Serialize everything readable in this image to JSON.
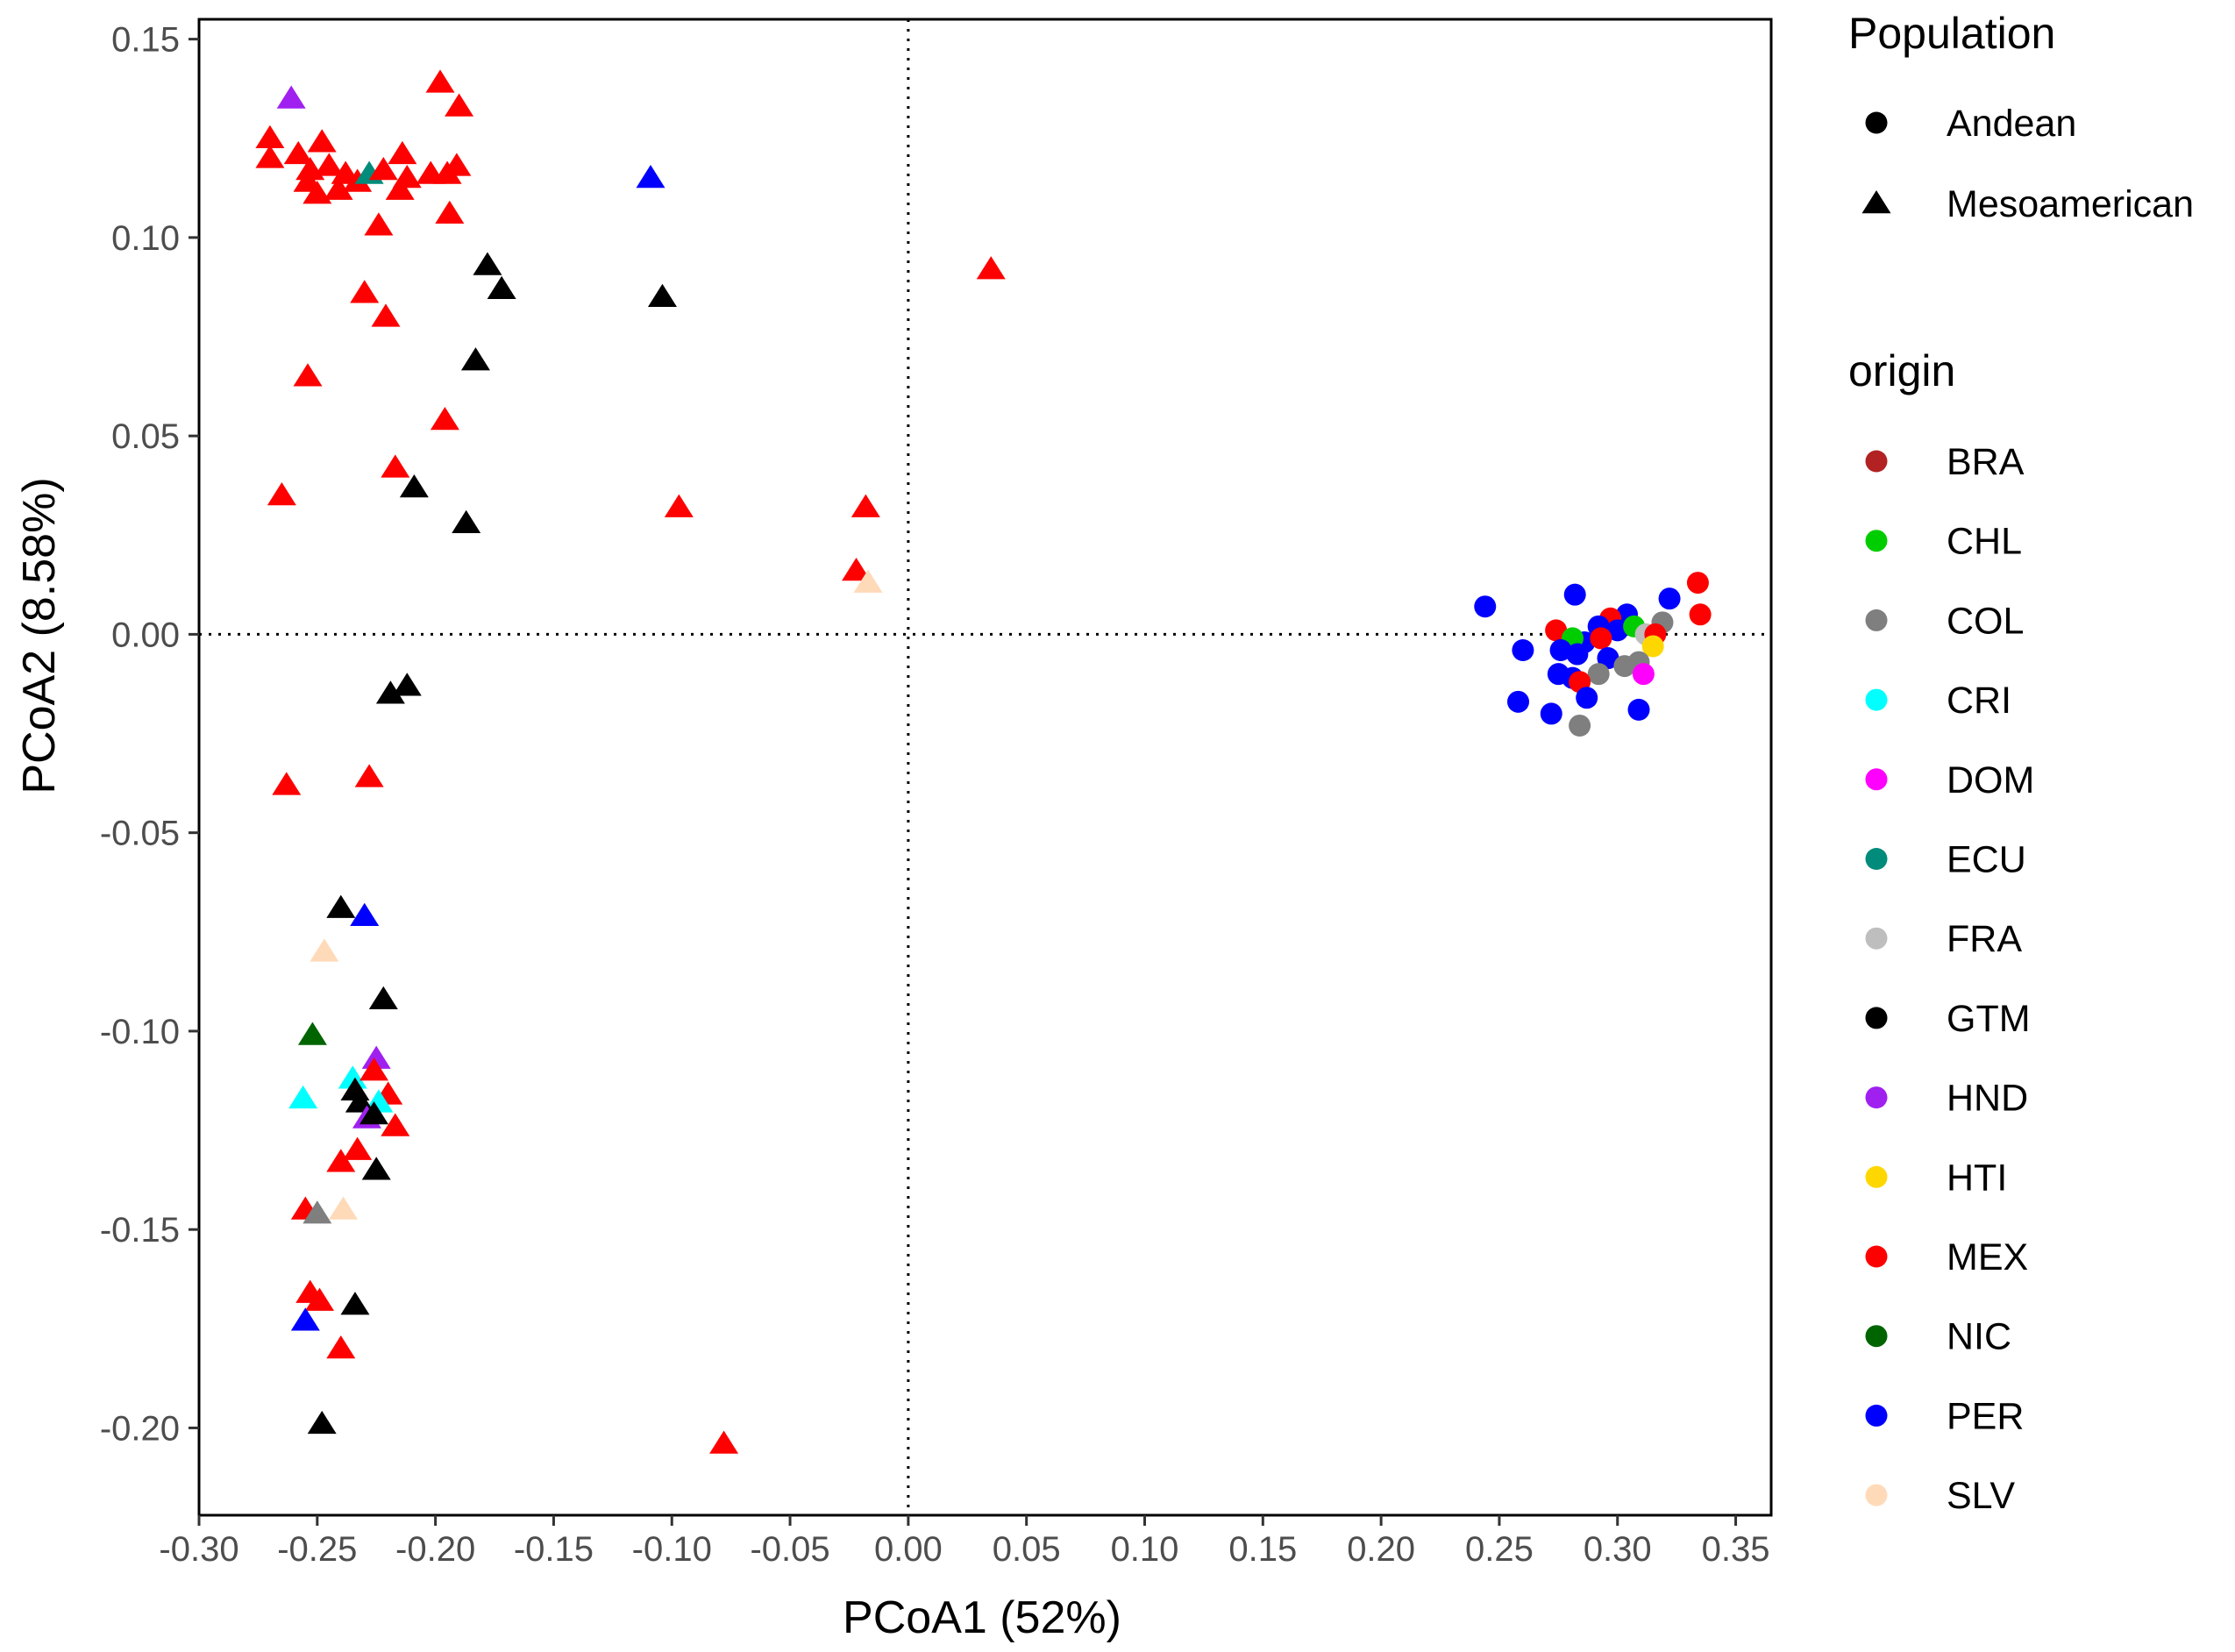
{
  "chart_data": {
    "type": "scatter",
    "xlabel": "PCoA1 (52%)",
    "ylabel": "PCoA2 (8.58%)",
    "xlim": [
      -0.3,
      0.365
    ],
    "ylim": [
      -0.222,
      0.155
    ],
    "x_ticks": [
      "-0.30",
      "-0.25",
      "-0.20",
      "-0.15",
      "-0.10",
      "-0.05",
      "0.00",
      "0.05",
      "0.10",
      "0.15",
      "0.20",
      "0.25",
      "0.30",
      "0.35"
    ],
    "y_ticks": [
      "0.15",
      "0.10",
      "0.05",
      "0.00",
      "-0.05",
      "-0.10",
      "-0.15",
      "-0.20"
    ],
    "reference_lines": {
      "x": 0.0,
      "y": 0.0,
      "style": "dotted"
    },
    "grid": false,
    "legends": {
      "population": {
        "title": "Population",
        "entries": [
          {
            "label": "Andean",
            "shape": "circle"
          },
          {
            "label": "Mesoamerican",
            "shape": "triangle"
          }
        ]
      },
      "origin": {
        "title": "origin",
        "entries": [
          {
            "label": "BRA",
            "color": "#b22222"
          },
          {
            "label": "CHL",
            "color": "#00cd00"
          },
          {
            "label": "COL",
            "color": "#7f7f7f"
          },
          {
            "label": "CRI",
            "color": "#00ffff"
          },
          {
            "label": "DOM",
            "color": "#ff00ff"
          },
          {
            "label": "ECU",
            "color": "#008b7a"
          },
          {
            "label": "FRA",
            "color": "#bebebe"
          },
          {
            "label": "GTM",
            "color": "#000000"
          },
          {
            "label": "HND",
            "color": "#a020f0"
          },
          {
            "label": "HTI",
            "color": "#ffd700"
          },
          {
            "label": "MEX",
            "color": "#ff0000"
          },
          {
            "label": "NIC",
            "color": "#006400"
          },
          {
            "label": "PER",
            "color": "#0000ff"
          },
          {
            "label": "SLV",
            "color": "#ffdab9"
          }
        ]
      }
    },
    "points": [
      {
        "x": -0.261,
        "y": 0.135,
        "pop": "Mesoamerican",
        "origin": "HND"
      },
      {
        "x": -0.198,
        "y": 0.139,
        "pop": "Mesoamerican",
        "origin": "MEX"
      },
      {
        "x": -0.19,
        "y": 0.133,
        "pop": "Mesoamerican",
        "origin": "MEX"
      },
      {
        "x": -0.27,
        "y": 0.125,
        "pop": "Mesoamerican",
        "origin": "MEX"
      },
      {
        "x": -0.27,
        "y": 0.12,
        "pop": "Mesoamerican",
        "origin": "MEX"
      },
      {
        "x": -0.258,
        "y": 0.121,
        "pop": "Mesoamerican",
        "origin": "MEX"
      },
      {
        "x": -0.248,
        "y": 0.124,
        "pop": "Mesoamerican",
        "origin": "MEX"
      },
      {
        "x": -0.253,
        "y": 0.117,
        "pop": "Mesoamerican",
        "origin": "MEX"
      },
      {
        "x": -0.254,
        "y": 0.114,
        "pop": "Mesoamerican",
        "origin": "MEX"
      },
      {
        "x": -0.245,
        "y": 0.118,
        "pop": "Mesoamerican",
        "origin": "MEX"
      },
      {
        "x": -0.238,
        "y": 0.116,
        "pop": "Mesoamerican",
        "origin": "MEX"
      },
      {
        "x": -0.25,
        "y": 0.111,
        "pop": "Mesoamerican",
        "origin": "MEX"
      },
      {
        "x": -0.241,
        "y": 0.112,
        "pop": "Mesoamerican",
        "origin": "MEX"
      },
      {
        "x": -0.233,
        "y": 0.114,
        "pop": "Mesoamerican",
        "origin": "MEX"
      },
      {
        "x": -0.228,
        "y": 0.116,
        "pop": "Mesoamerican",
        "origin": "ECU"
      },
      {
        "x": -0.222,
        "y": 0.117,
        "pop": "Mesoamerican",
        "origin": "MEX"
      },
      {
        "x": -0.215,
        "y": 0.112,
        "pop": "Mesoamerican",
        "origin": "MEX"
      },
      {
        "x": -0.214,
        "y": 0.121,
        "pop": "Mesoamerican",
        "origin": "MEX"
      },
      {
        "x": -0.212,
        "y": 0.115,
        "pop": "Mesoamerican",
        "origin": "MEX"
      },
      {
        "x": -0.202,
        "y": 0.116,
        "pop": "Mesoamerican",
        "origin": "MEX"
      },
      {
        "x": -0.195,
        "y": 0.116,
        "pop": "Mesoamerican",
        "origin": "MEX"
      },
      {
        "x": -0.191,
        "y": 0.118,
        "pop": "Mesoamerican",
        "origin": "MEX"
      },
      {
        "x": -0.194,
        "y": 0.106,
        "pop": "Mesoamerican",
        "origin": "MEX"
      },
      {
        "x": -0.224,
        "y": 0.103,
        "pop": "Mesoamerican",
        "origin": "MEX"
      },
      {
        "x": -0.109,
        "y": 0.115,
        "pop": "Mesoamerican",
        "origin": "PER"
      },
      {
        "x": -0.178,
        "y": 0.093,
        "pop": "Mesoamerican",
        "origin": "GTM"
      },
      {
        "x": -0.172,
        "y": 0.087,
        "pop": "Mesoamerican",
        "origin": "GTM"
      },
      {
        "x": -0.104,
        "y": 0.085,
        "pop": "Mesoamerican",
        "origin": "GTM"
      },
      {
        "x": 0.035,
        "y": 0.092,
        "pop": "Mesoamerican",
        "origin": "MEX"
      },
      {
        "x": -0.23,
        "y": 0.086,
        "pop": "Mesoamerican",
        "origin": "MEX"
      },
      {
        "x": -0.221,
        "y": 0.08,
        "pop": "Mesoamerican",
        "origin": "MEX"
      },
      {
        "x": -0.183,
        "y": 0.069,
        "pop": "Mesoamerican",
        "origin": "GTM"
      },
      {
        "x": -0.254,
        "y": 0.065,
        "pop": "Mesoamerican",
        "origin": "MEX"
      },
      {
        "x": -0.196,
        "y": 0.054,
        "pop": "Mesoamerican",
        "origin": "MEX"
      },
      {
        "x": -0.217,
        "y": 0.042,
        "pop": "Mesoamerican",
        "origin": "MEX"
      },
      {
        "x": -0.209,
        "y": 0.037,
        "pop": "Mesoamerican",
        "origin": "GTM"
      },
      {
        "x": -0.265,
        "y": 0.035,
        "pop": "Mesoamerican",
        "origin": "MEX"
      },
      {
        "x": -0.097,
        "y": 0.032,
        "pop": "Mesoamerican",
        "origin": "MEX"
      },
      {
        "x": -0.187,
        "y": 0.028,
        "pop": "Mesoamerican",
        "origin": "GTM"
      },
      {
        "x": -0.018,
        "y": 0.032,
        "pop": "Mesoamerican",
        "origin": "MEX"
      },
      {
        "x": -0.022,
        "y": 0.016,
        "pop": "Mesoamerican",
        "origin": "MEX"
      },
      {
        "x": -0.017,
        "y": 0.013,
        "pop": "Mesoamerican",
        "origin": "SLV"
      },
      {
        "x": -0.219,
        "y": -0.015,
        "pop": "Mesoamerican",
        "origin": "GTM"
      },
      {
        "x": -0.212,
        "y": -0.013,
        "pop": "Mesoamerican",
        "origin": "GTM"
      },
      {
        "x": -0.263,
        "y": -0.038,
        "pop": "Mesoamerican",
        "origin": "MEX"
      },
      {
        "x": -0.228,
        "y": -0.036,
        "pop": "Mesoamerican",
        "origin": "MEX"
      },
      {
        "x": -0.24,
        "y": -0.069,
        "pop": "Mesoamerican",
        "origin": "GTM"
      },
      {
        "x": -0.23,
        "y": -0.071,
        "pop": "Mesoamerican",
        "origin": "PER"
      },
      {
        "x": -0.247,
        "y": -0.08,
        "pop": "Mesoamerican",
        "origin": "SLV"
      },
      {
        "x": -0.222,
        "y": -0.092,
        "pop": "Mesoamerican",
        "origin": "GTM"
      },
      {
        "x": -0.252,
        "y": -0.101,
        "pop": "Mesoamerican",
        "origin": "NIC"
      },
      {
        "x": -0.225,
        "y": -0.107,
        "pop": "Mesoamerican",
        "origin": "HND"
      },
      {
        "x": -0.235,
        "y": -0.112,
        "pop": "Mesoamerican",
        "origin": "CRI"
      },
      {
        "x": -0.226,
        "y": -0.11,
        "pop": "Mesoamerican",
        "origin": "MEX"
      },
      {
        "x": -0.234,
        "y": -0.115,
        "pop": "Mesoamerican",
        "origin": "GTM"
      },
      {
        "x": -0.256,
        "y": -0.117,
        "pop": "Mesoamerican",
        "origin": "CRI"
      },
      {
        "x": -0.22,
        "y": -0.116,
        "pop": "Mesoamerican",
        "origin": "MEX"
      },
      {
        "x": -0.224,
        "y": -0.118,
        "pop": "Mesoamerican",
        "origin": "CRI"
      },
      {
        "x": -0.232,
        "y": -0.118,
        "pop": "Mesoamerican",
        "origin": "GTM"
      },
      {
        "x": -0.229,
        "y": -0.122,
        "pop": "Mesoamerican",
        "origin": "HND"
      },
      {
        "x": -0.226,
        "y": -0.121,
        "pop": "Mesoamerican",
        "origin": "GTM"
      },
      {
        "x": -0.217,
        "y": -0.124,
        "pop": "Mesoamerican",
        "origin": "MEX"
      },
      {
        "x": -0.233,
        "y": -0.13,
        "pop": "Mesoamerican",
        "origin": "MEX"
      },
      {
        "x": -0.24,
        "y": -0.133,
        "pop": "Mesoamerican",
        "origin": "MEX"
      },
      {
        "x": -0.225,
        "y": -0.135,
        "pop": "Mesoamerican",
        "origin": "GTM"
      },
      {
        "x": -0.255,
        "y": -0.145,
        "pop": "Mesoamerican",
        "origin": "MEX"
      },
      {
        "x": -0.25,
        "y": -0.146,
        "pop": "Mesoamerican",
        "origin": "COL"
      },
      {
        "x": -0.239,
        "y": -0.145,
        "pop": "Mesoamerican",
        "origin": "SLV"
      },
      {
        "x": -0.253,
        "y": -0.166,
        "pop": "Mesoamerican",
        "origin": "MEX"
      },
      {
        "x": -0.249,
        "y": -0.168,
        "pop": "Mesoamerican",
        "origin": "MEX"
      },
      {
        "x": -0.234,
        "y": -0.169,
        "pop": "Mesoamerican",
        "origin": "GTM"
      },
      {
        "x": -0.255,
        "y": -0.173,
        "pop": "Mesoamerican",
        "origin": "PER"
      },
      {
        "x": -0.24,
        "y": -0.18,
        "pop": "Mesoamerican",
        "origin": "MEX"
      },
      {
        "x": -0.248,
        "y": -0.199,
        "pop": "Mesoamerican",
        "origin": "GTM"
      },
      {
        "x": -0.078,
        "y": -0.204,
        "pop": "Mesoamerican",
        "origin": "MEX"
      },
      {
        "x": 0.244,
        "y": 0.007,
        "pop": "Andean",
        "origin": "PER"
      },
      {
        "x": 0.282,
        "y": 0.01,
        "pop": "Andean",
        "origin": "PER"
      },
      {
        "x": 0.322,
        "y": 0.009,
        "pop": "Andean",
        "origin": "PER"
      },
      {
        "x": 0.334,
        "y": 0.013,
        "pop": "Andean",
        "origin": "MEX"
      },
      {
        "x": 0.335,
        "y": 0.005,
        "pop": "Andean",
        "origin": "MEX"
      },
      {
        "x": 0.304,
        "y": 0.005,
        "pop": "Andean",
        "origin": "PER"
      },
      {
        "x": 0.297,
        "y": 0.004,
        "pop": "Andean",
        "origin": "MEX"
      },
      {
        "x": 0.292,
        "y": 0.002,
        "pop": "Andean",
        "origin": "PER"
      },
      {
        "x": 0.3,
        "y": 0.001,
        "pop": "Andean",
        "origin": "PER"
      },
      {
        "x": 0.274,
        "y": 0.001,
        "pop": "Andean",
        "origin": "MEX"
      },
      {
        "x": 0.307,
        "y": 0.002,
        "pop": "Andean",
        "origin": "CHL"
      },
      {
        "x": 0.312,
        "y": 0.0,
        "pop": "Andean",
        "origin": "FRA"
      },
      {
        "x": 0.319,
        "y": 0.003,
        "pop": "Andean",
        "origin": "COL"
      },
      {
        "x": 0.316,
        "y": 0.0,
        "pop": "Andean",
        "origin": "MEX"
      },
      {
        "x": 0.286,
        "y": -0.002,
        "pop": "Andean",
        "origin": "PER"
      },
      {
        "x": 0.281,
        "y": -0.001,
        "pop": "Andean",
        "origin": "CHL"
      },
      {
        "x": 0.293,
        "y": -0.001,
        "pop": "Andean",
        "origin": "MEX"
      },
      {
        "x": 0.315,
        "y": -0.003,
        "pop": "Andean",
        "origin": "HTI"
      },
      {
        "x": 0.26,
        "y": -0.004,
        "pop": "Andean",
        "origin": "PER"
      },
      {
        "x": 0.276,
        "y": -0.004,
        "pop": "Andean",
        "origin": "PER"
      },
      {
        "x": 0.283,
        "y": -0.005,
        "pop": "Andean",
        "origin": "PER"
      },
      {
        "x": 0.296,
        "y": -0.006,
        "pop": "Andean",
        "origin": "PER"
      },
      {
        "x": 0.303,
        "y": -0.008,
        "pop": "Andean",
        "origin": "COL"
      },
      {
        "x": 0.309,
        "y": -0.007,
        "pop": "Andean",
        "origin": "COL"
      },
      {
        "x": 0.275,
        "y": -0.01,
        "pop": "Andean",
        "origin": "PER"
      },
      {
        "x": 0.292,
        "y": -0.01,
        "pop": "Andean",
        "origin": "COL"
      },
      {
        "x": 0.281,
        "y": -0.011,
        "pop": "Andean",
        "origin": "PER"
      },
      {
        "x": 0.311,
        "y": -0.01,
        "pop": "Andean",
        "origin": "DOM"
      },
      {
        "x": 0.284,
        "y": -0.012,
        "pop": "Andean",
        "origin": "MEX"
      },
      {
        "x": 0.258,
        "y": -0.017,
        "pop": "Andean",
        "origin": "PER"
      },
      {
        "x": 0.287,
        "y": -0.016,
        "pop": "Andean",
        "origin": "PER"
      },
      {
        "x": 0.272,
        "y": -0.02,
        "pop": "Andean",
        "origin": "PER"
      },
      {
        "x": 0.309,
        "y": -0.019,
        "pop": "Andean",
        "origin": "PER"
      },
      {
        "x": 0.284,
        "y": -0.023,
        "pop": "Andean",
        "origin": "COL"
      }
    ]
  }
}
